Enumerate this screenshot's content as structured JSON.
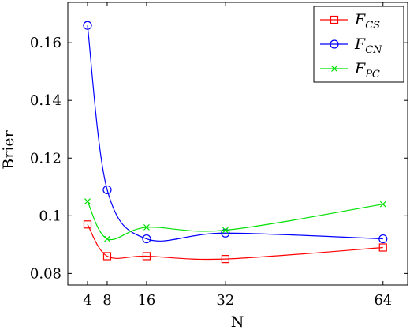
{
  "chart_data": {
    "type": "line",
    "x": [
      4,
      8,
      16,
      32,
      64
    ],
    "xticks": [
      "4",
      "8",
      "16",
      "32",
      "64"
    ],
    "yticks": [
      "0.08",
      "0.1",
      "0.12",
      "0.14",
      "0.16"
    ],
    "ytick_values": [
      0.08,
      0.1,
      0.12,
      0.14,
      0.16
    ],
    "xlim": [
      0,
      69
    ],
    "ylim": [
      0.076,
      0.174
    ],
    "xlabel": "N",
    "ylabel": "Brier",
    "grid": false,
    "legend_position": "top-right",
    "series": [
      {
        "name": "F_CS",
        "label_main": "F",
        "label_sub": "CS",
        "marker": "square",
        "color": "#ff0000",
        "values": [
          0.097,
          0.086,
          0.086,
          0.085,
          0.089
        ]
      },
      {
        "name": "F_CN",
        "label_main": "F",
        "label_sub": "CN",
        "marker": "circle",
        "color": "#0000ff",
        "values": [
          0.166,
          0.109,
          0.092,
          0.094,
          0.092
        ]
      },
      {
        "name": "F_PC",
        "label_main": "F",
        "label_sub": "PC",
        "marker": "cross",
        "color": "#00e000",
        "values": [
          0.105,
          0.092,
          0.096,
          0.095,
          0.104
        ]
      }
    ]
  }
}
